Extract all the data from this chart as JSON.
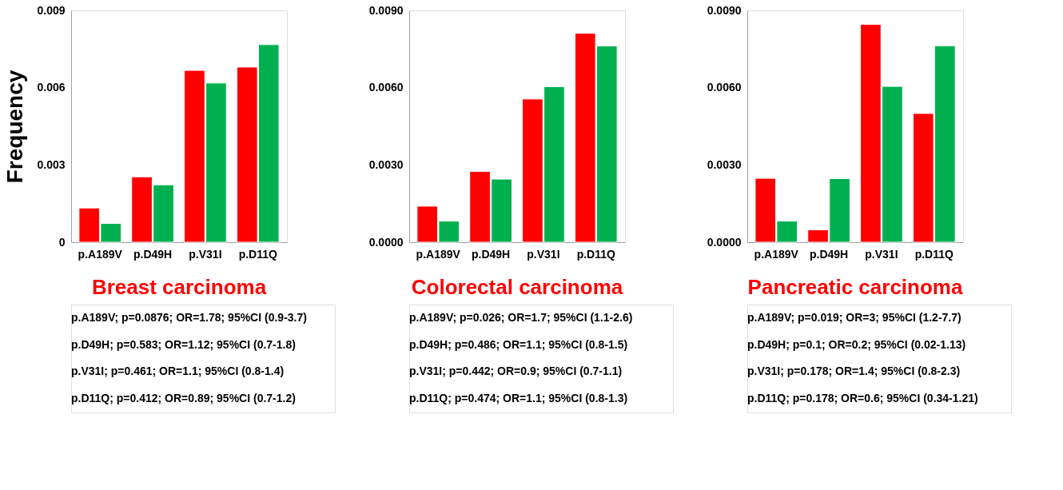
{
  "chart_data": [
    {
      "type": "bar",
      "title": "Breast carcinoma",
      "ylabel": "Frequency",
      "categories": [
        "p.A189V",
        "p.D49H",
        "p.V31I",
        "p.D11Q"
      ],
      "series": [
        {
          "color": "#ff0000",
          "values": [
            0.00133,
            0.00254,
            0.00667,
            0.0068
          ]
        },
        {
          "color": "#00b050",
          "values": [
            0.00073,
            0.00223,
            0.00618,
            0.00767
          ]
        }
      ],
      "ylim": [
        0,
        0.009
      ],
      "yticks": [
        0,
        0.003,
        0.006,
        0.009
      ],
      "grid": false,
      "legend": false,
      "annotations": [
        "p.A189V; p=0.0876; OR=1.78; 95%CI (0.9-3.7)",
        "p.D49H; p=0.583; OR=1.12; 95%CI (0.7-1.8)",
        "p.V31I; p=0.461; OR=1.1; 95%CI (0.8-1.4)",
        "p.D11Q; p=0.412; OR=0.89; 95%CI (0.7-1.2)"
      ]
    },
    {
      "type": "bar",
      "title": "Colorectal carcinoma",
      "categories": [
        "p.A189V",
        "p.D49H",
        "p.V31I",
        "p.D11Q"
      ],
      "series": [
        {
          "color": "#ff0000",
          "values": [
            0.0014,
            0.00275,
            0.00556,
            0.00811
          ]
        },
        {
          "color": "#00b050",
          "values": [
            0.00082,
            0.00245,
            0.00604,
            0.00762
          ]
        }
      ],
      "ylim": [
        0,
        0.009
      ],
      "yticks": [
        {
          "value": 0,
          "label": "0.0000"
        },
        {
          "value": 0.003,
          "label": "0.0030"
        },
        {
          "value": 0.006,
          "label": "0.0060"
        },
        {
          "value": 0.009,
          "label": "0.0090"
        }
      ],
      "grid": false,
      "legend": false,
      "annotations": [
        "p.A189V; p=0.026; OR=1.7; 95%CI (1.1-2.6)",
        "p.D49H; p=0.486; OR=1.1; 95%CI (0.8-1.5)",
        "p.V31I; p=0.442; OR=0.9; 95%CI (0.7-1.1)",
        "p.D11Q; p=0.474; OR=1.1; 95%CI (0.8-1.3)"
      ]
    },
    {
      "type": "bar",
      "title": "Pancreatic carcinoma",
      "categories": [
        "p.A189V",
        "p.D49H",
        "p.V31I",
        "p.D11Q"
      ],
      "series": [
        {
          "color": "#ff0000",
          "values": [
            0.00248,
            0.00048,
            0.00846,
            0.005
          ]
        },
        {
          "color": "#00b050",
          "values": [
            0.00082,
            0.00247,
            0.00605,
            0.00763
          ]
        }
      ],
      "ylim": [
        0,
        0.009
      ],
      "yticks": [
        {
          "value": 0,
          "label": "0.0000"
        },
        {
          "value": 0.003,
          "label": "0.0030"
        },
        {
          "value": 0.006,
          "label": "0.0060"
        },
        {
          "value": 0.009,
          "label": "0.0090"
        }
      ],
      "grid": false,
      "legend": false,
      "annotations": [
        "p.A189V; p=0.019; OR=3; 95%CI (1.2-7.7)",
        "p.D49H; p=0.1; OR=0.2; 95%CI (0.02-1.13)",
        "p.V31I; p=0.178; OR=1.4; 95%CI (0.8-2.3)",
        "p.D11Q; p=0.178; OR=0.6; 95%CI (0.34-1.21)"
      ]
    }
  ]
}
